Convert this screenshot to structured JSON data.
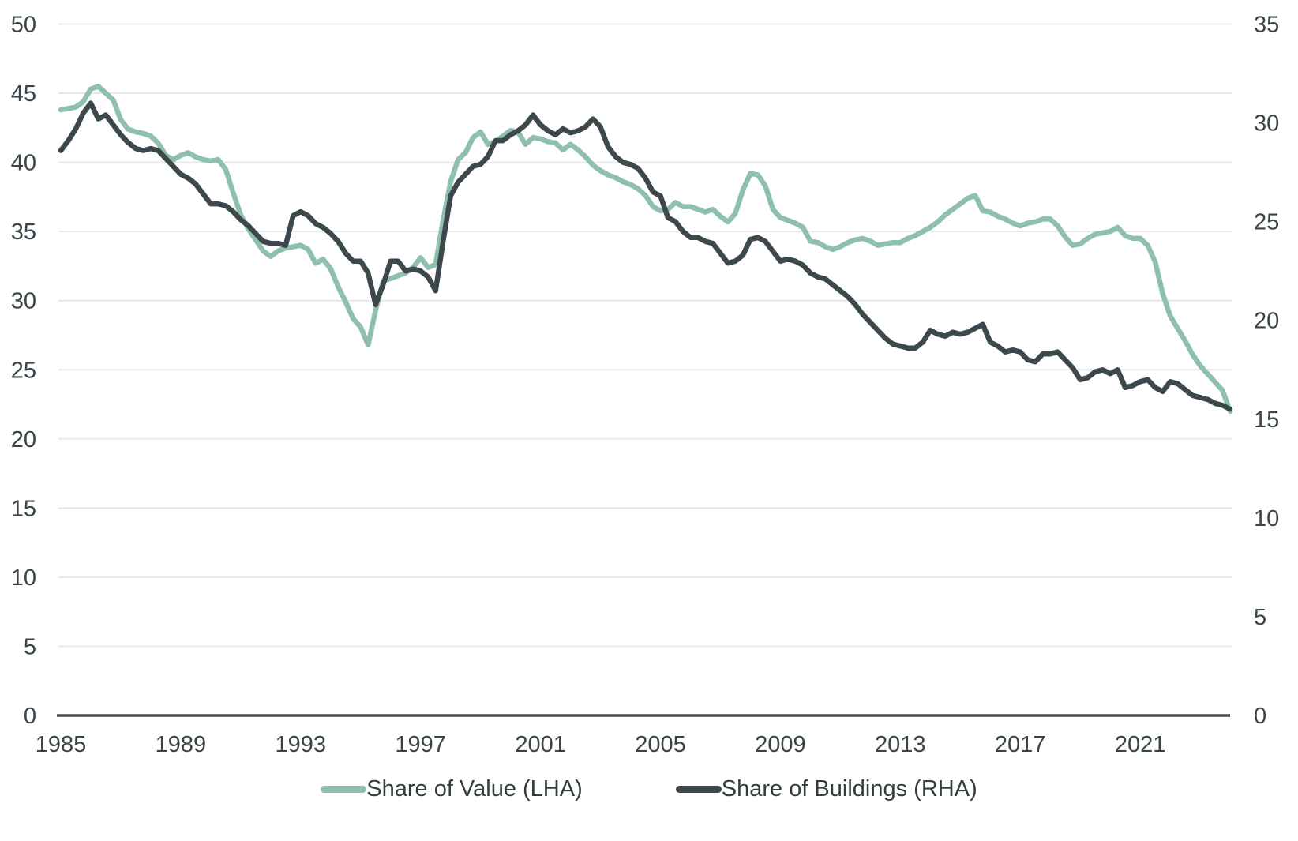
{
  "colors": {
    "background": "#ffffff",
    "gridline": "#e8e8e8",
    "axis_line": "#434e52",
    "tick_label": "#3a4549",
    "value_series": "#8fc0ae",
    "buildings_series": "#3d484c"
  },
  "legend": {
    "items": [
      {
        "label": "Share of Value (LHA)",
        "color": "#8fc0ae"
      },
      {
        "label": "Share of Buildings (RHA)",
        "color": "#3d484c"
      }
    ]
  },
  "chart_data": {
    "type": "line",
    "title": "",
    "xlabel": "",
    "ylabel_left": "",
    "ylabel_right": "",
    "grid": "horizontal",
    "legend_position": "bottom-center",
    "x_start_year": 1985,
    "x_step_years": 0.25,
    "x_tick_years": [
      1985,
      1989,
      1993,
      1997,
      2001,
      2005,
      2009,
      2013,
      2017,
      2021
    ],
    "left_axis": {
      "min": 0,
      "max": 50,
      "ticks": [
        0,
        5,
        10,
        15,
        20,
        25,
        30,
        35,
        40,
        45,
        50
      ]
    },
    "right_axis": {
      "min": 0,
      "max": 35,
      "ticks": [
        0,
        5,
        10,
        15,
        20,
        25,
        30,
        35
      ]
    },
    "series": [
      {
        "name": "Share of Value (LHA)",
        "axis": "left",
        "color": "#8fc0ae",
        "values": [
          43.8,
          43.9,
          44.0,
          44.4,
          45.3,
          45.5,
          45.0,
          44.5,
          43.1,
          42.4,
          42.2,
          42.1,
          41.9,
          41.4,
          40.5,
          40.2,
          40.5,
          40.7,
          40.4,
          40.2,
          40.1,
          40.2,
          39.5,
          37.8,
          36.2,
          35.2,
          34.4,
          33.6,
          33.2,
          33.6,
          33.8,
          33.9,
          34.0,
          33.7,
          32.7,
          33.0,
          32.3,
          31.0,
          29.9,
          28.7,
          28.1,
          26.8,
          29.3,
          31.4,
          31.6,
          31.8,
          32.0,
          32.4,
          33.1,
          32.4,
          32.6,
          35.8,
          38.6,
          40.2,
          40.7,
          41.8,
          42.2,
          41.3,
          41.5,
          41.9,
          42.3,
          42.2,
          41.3,
          41.8,
          41.7,
          41.5,
          41.4,
          40.9,
          41.3,
          40.9,
          40.4,
          39.8,
          39.4,
          39.1,
          38.9,
          38.6,
          38.4,
          38.1,
          37.6,
          36.8,
          36.5,
          36.6,
          37.1,
          36.8,
          36.8,
          36.6,
          36.4,
          36.6,
          36.1,
          35.7,
          36.3,
          38.0,
          39.2,
          39.1,
          38.3,
          36.6,
          36.0,
          35.8,
          35.6,
          35.3,
          34.3,
          34.2,
          33.9,
          33.7,
          33.9,
          34.2,
          34.4,
          34.5,
          34.3,
          34.0,
          34.1,
          34.2,
          34.2,
          34.5,
          34.7,
          35.0,
          35.3,
          35.7,
          36.2,
          36.6,
          37.0,
          37.4,
          37.6,
          36.5,
          36.4,
          36.1,
          35.9,
          35.6,
          35.4,
          35.6,
          35.7,
          35.9,
          35.9,
          35.4,
          34.6,
          34.0,
          34.1,
          34.5,
          34.8,
          34.9,
          35.0,
          35.3,
          34.7,
          34.5,
          34.5,
          34.0,
          32.8,
          30.5,
          28.9,
          28.0,
          27.1,
          26.1,
          25.3,
          24.7,
          24.1,
          23.5,
          22.0
        ]
      },
      {
        "name": "Share of Buildings (RHA)",
        "axis": "right",
        "color": "#3d484c",
        "values": [
          28.6,
          29.1,
          29.7,
          30.5,
          31.0,
          30.2,
          30.4,
          29.9,
          29.4,
          29.0,
          28.7,
          28.6,
          28.7,
          28.6,
          28.2,
          27.8,
          27.4,
          27.2,
          26.9,
          26.4,
          25.9,
          25.9,
          25.8,
          25.5,
          25.1,
          24.8,
          24.4,
          24.0,
          23.9,
          23.9,
          23.8,
          25.3,
          25.5,
          25.3,
          24.9,
          24.7,
          24.4,
          24.0,
          23.4,
          23.0,
          23.0,
          22.4,
          20.8,
          21.8,
          23.0,
          23.0,
          22.5,
          22.6,
          22.5,
          22.2,
          21.5,
          24.0,
          26.3,
          27.0,
          27.4,
          27.8,
          27.9,
          28.3,
          29.1,
          29.1,
          29.4,
          29.6,
          29.9,
          30.4,
          29.9,
          29.6,
          29.4,
          29.7,
          29.5,
          29.6,
          29.8,
          30.2,
          29.8,
          28.8,
          28.3,
          28.0,
          27.9,
          27.7,
          27.2,
          26.5,
          26.3,
          25.2,
          25.0,
          24.5,
          24.2,
          24.2,
          24.0,
          23.9,
          23.4,
          22.9,
          23.0,
          23.3,
          24.1,
          24.2,
          24.0,
          23.5,
          23.0,
          23.1,
          23.0,
          22.8,
          22.4,
          22.2,
          22.1,
          21.8,
          21.5,
          21.2,
          20.8,
          20.3,
          19.9,
          19.5,
          19.1,
          18.8,
          18.7,
          18.6,
          18.6,
          18.9,
          19.5,
          19.3,
          19.2,
          19.4,
          19.3,
          19.4,
          19.6,
          19.8,
          18.9,
          18.7,
          18.4,
          18.5,
          18.4,
          18.0,
          17.9,
          18.3,
          18.3,
          18.4,
          18.0,
          17.6,
          17.0,
          17.1,
          17.4,
          17.5,
          17.3,
          17.5,
          16.6,
          16.7,
          16.9,
          17.0,
          16.6,
          16.4,
          16.9,
          16.8,
          16.5,
          16.2,
          16.1,
          16.0,
          15.8,
          15.7,
          15.5
        ]
      }
    ]
  }
}
